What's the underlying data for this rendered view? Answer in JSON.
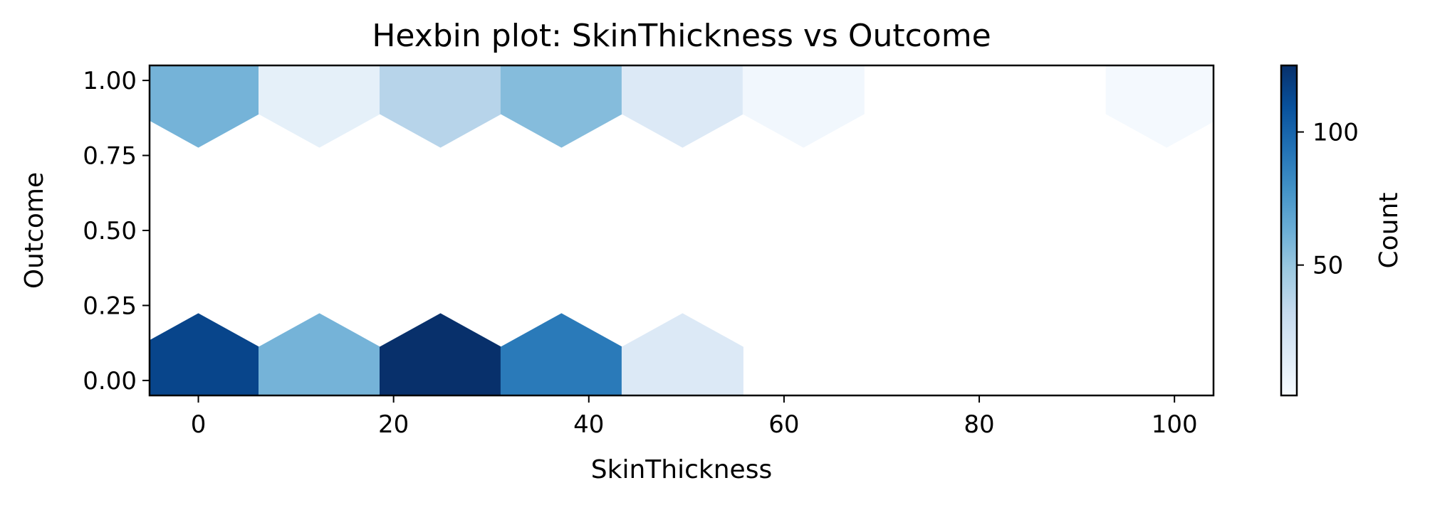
{
  "chart_data": {
    "type": "hexbin",
    "title": "Hexbin plot: SkinThickness vs Outcome",
    "xlabel": "SkinThickness",
    "ylabel": "Outcome",
    "xlim": [
      -5,
      104
    ],
    "ylim": [
      -0.05,
      1.05
    ],
    "xticks": [
      0,
      20,
      40,
      60,
      80,
      100
    ],
    "xtick_labels": [
      "0",
      "20",
      "40",
      "60",
      "80",
      "100"
    ],
    "yticks": [
      0.0,
      0.25,
      0.5,
      0.75,
      1.0
    ],
    "ytick_labels": [
      "0.00",
      "0.25",
      "0.50",
      "0.75",
      "1.00"
    ],
    "colormap": "Blues",
    "color_range": [
      1,
      125
    ],
    "colorbar_label": "Count",
    "colorbar_ticks": [
      50,
      100
    ],
    "colorbar_tick_labels": [
      "50",
      "100"
    ],
    "bins": [
      {
        "x": 0.0,
        "y": 0.0,
        "count": 115
      },
      {
        "x": 12.4,
        "y": 0.0,
        "count": 60
      },
      {
        "x": 24.8,
        "y": 0.0,
        "count": 125
      },
      {
        "x": 37.2,
        "y": 0.0,
        "count": 90
      },
      {
        "x": 49.6,
        "y": 0.0,
        "count": 18
      },
      {
        "x": 0.0,
        "y": 1.0,
        "count": 60
      },
      {
        "x": 12.4,
        "y": 1.0,
        "count": 12
      },
      {
        "x": 24.8,
        "y": 1.0,
        "count": 38
      },
      {
        "x": 37.2,
        "y": 1.0,
        "count": 55
      },
      {
        "x": 49.6,
        "y": 1.0,
        "count": 18
      },
      {
        "x": 62.0,
        "y": 1.0,
        "count": 5
      },
      {
        "x": 99.2,
        "y": 1.0,
        "count": 3
      }
    ],
    "grid": false,
    "legend": "none"
  }
}
